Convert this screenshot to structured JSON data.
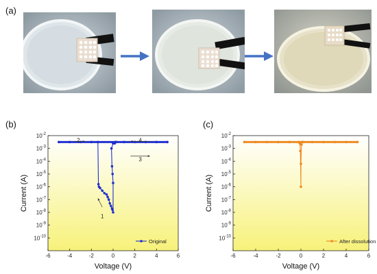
{
  "panel_a": {
    "label": "(a)",
    "photos": [
      {
        "name": "photo-step-1"
      },
      {
        "name": "photo-step-2"
      },
      {
        "name": "photo-step-3"
      }
    ],
    "arrow_color": "#4472c4"
  },
  "chart_data": [
    {
      "panel_label": "(b)",
      "type": "line",
      "xlabel": "Voltage (V)",
      "ylabel": "Current (A)",
      "xlim": [
        -6,
        6
      ],
      "ylim_exp": [
        -11,
        -2
      ],
      "y_log": true,
      "x_ticks": [
        "-6",
        "-4",
        "-2",
        "0",
        "2",
        "4",
        "6"
      ],
      "y_ticks": [
        "-2",
        "-3",
        "-4",
        "-5",
        "-6",
        "-7",
        "-8",
        "-9",
        "-10"
      ],
      "color": "#1f2fcf",
      "legend": "Original",
      "legend_position": "bottom-right",
      "annotations": [
        {
          "text": "1",
          "x": -1.0,
          "y_exp": -8.3
        },
        {
          "text": "2",
          "x": -3.2,
          "y_exp": -2.35
        },
        {
          "text": "3",
          "x": 2.5,
          "y_exp": -3.85
        },
        {
          "text": "4",
          "x": 2.5,
          "y_exp": -2.35
        }
      ],
      "series": [
        {
          "x": [
            -5,
            -4,
            -3,
            -2,
            -1.4,
            -1.35,
            -1.3,
            -1.2,
            -1.0,
            -0.8,
            -0.6,
            -0.5,
            -0.4,
            -0.3,
            -0.2,
            -0.1,
            -0.05,
            0.0,
            0.0,
            -0.05,
            -0.1,
            -0.15,
            0.0,
            0.0,
            0.15,
            0.2,
            0.3,
            1,
            2,
            3,
            4,
            5
          ],
          "y_exp": [
            -2.5,
            -2.5,
            -2.5,
            -2.5,
            -2.5,
            -5.8,
            -6.0,
            -6.1,
            -6.3,
            -6.5,
            -6.6,
            -6.8,
            -7.0,
            -7.3,
            -7.5,
            -7.7,
            -7.8,
            -8.0,
            -5.7,
            -5.0,
            -4.4,
            -3.0,
            -2.6,
            -2.6,
            -2.6,
            -2.5,
            -2.5,
            -2.5,
            -2.5,
            -2.5,
            -2.5,
            -2.5
          ]
        }
      ]
    },
    {
      "panel_label": "(c)",
      "type": "line",
      "xlabel": "Voltage (V)",
      "ylabel": "Current (A)",
      "xlim": [
        -6,
        6
      ],
      "ylim_exp": [
        -11,
        -2
      ],
      "y_log": true,
      "x_ticks": [
        "-6",
        "-4",
        "-2",
        "0",
        "2",
        "4",
        "6"
      ],
      "y_ticks": [
        "-2",
        "-3",
        "-4",
        "-5",
        "-6",
        "-7",
        "-8",
        "-9",
        "-10"
      ],
      "color": "#ee8a22",
      "legend": "After dissolution",
      "legend_position": "bottom-right",
      "series": [
        {
          "x": [
            -5,
            -4,
            -3,
            -2,
            -1,
            -0.2,
            -0.1,
            -0.05,
            0.0,
            0.0,
            0.05,
            0.1,
            0.2,
            1,
            2,
            3,
            4,
            5
          ],
          "y_exp": [
            -2.5,
            -2.5,
            -2.5,
            -2.5,
            -2.5,
            -2.5,
            -2.6,
            -3.2,
            -6.0,
            -4.2,
            -2.7,
            -2.5,
            -2.5,
            -2.5,
            -2.5,
            -2.5,
            -2.5,
            -2.5
          ]
        }
      ]
    }
  ]
}
